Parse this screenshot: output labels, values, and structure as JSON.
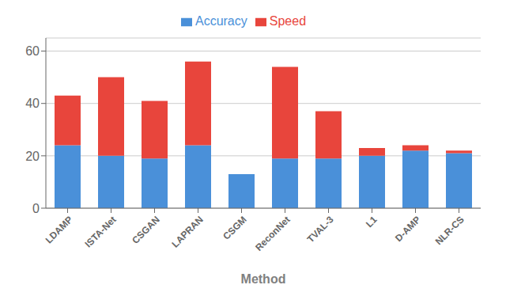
{
  "chart_data": {
    "type": "bar",
    "xlabel": "Method",
    "categories": [
      "LDAMP",
      "ISTA-Net",
      "CSGAN",
      "LAPRAN",
      "CSGM",
      "ReconNet",
      "TVAL-3",
      "L1",
      "D-AMP",
      "NLR-CS"
    ],
    "series": [
      {
        "name": "Accuracy",
        "color": "#4A90D9",
        "values": [
          24,
          20,
          19,
          24,
          13,
          19,
          19,
          20,
          22,
          21
        ]
      },
      {
        "name": "Speed",
        "color": "#E8453C",
        "values": [
          19,
          30,
          22,
          32,
          0,
          35,
          18,
          3,
          2,
          1
        ]
      }
    ],
    "stacked": true,
    "ylim": [
      0,
      65
    ],
    "yticks": [
      0,
      20,
      40,
      60
    ],
    "grid": true,
    "legend": "top"
  }
}
